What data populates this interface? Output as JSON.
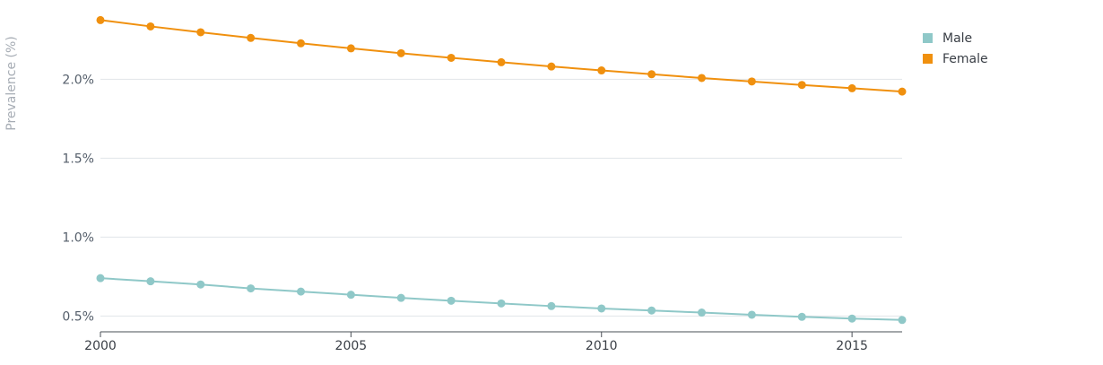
{
  "chart_data": {
    "type": "line",
    "title": "",
    "ylabel": "Prevalence (%)",
    "xlabel": "",
    "x": [
      2000,
      2001,
      2002,
      2003,
      2004,
      2005,
      2006,
      2007,
      2008,
      2009,
      2010,
      2011,
      2012,
      2013,
      2014,
      2015,
      2016
    ],
    "xlim": [
      2000,
      2016
    ],
    "ylim": [
      0.4,
      2.4
    ],
    "x_ticks": [
      2000,
      2005,
      2010,
      2015
    ],
    "x_tick_labels": [
      "2000",
      "2005",
      "2010",
      "2015"
    ],
    "y_ticks": [
      0.5,
      1.0,
      1.5,
      2.0
    ],
    "y_tick_labels": [
      "0.5%",
      "1.0%",
      "1.5%",
      "2.0%"
    ],
    "grid": "horizontal",
    "legend_position": "top-right",
    "series": [
      {
        "name": "Male",
        "color": "#8fc8c8",
        "values": [
          0.74,
          0.72,
          0.7,
          0.675,
          0.655,
          0.635,
          0.615,
          0.597,
          0.58,
          0.563,
          0.548,
          0.535,
          0.522,
          0.508,
          0.495,
          0.484,
          0.475
        ]
      },
      {
        "name": "Female",
        "color": "#f0900e",
        "values": [
          2.375,
          2.335,
          2.298,
          2.262,
          2.228,
          2.196,
          2.165,
          2.136,
          2.108,
          2.081,
          2.056,
          2.032,
          2.008,
          1.986,
          1.964,
          1.943,
          1.922
        ]
      }
    ]
  }
}
